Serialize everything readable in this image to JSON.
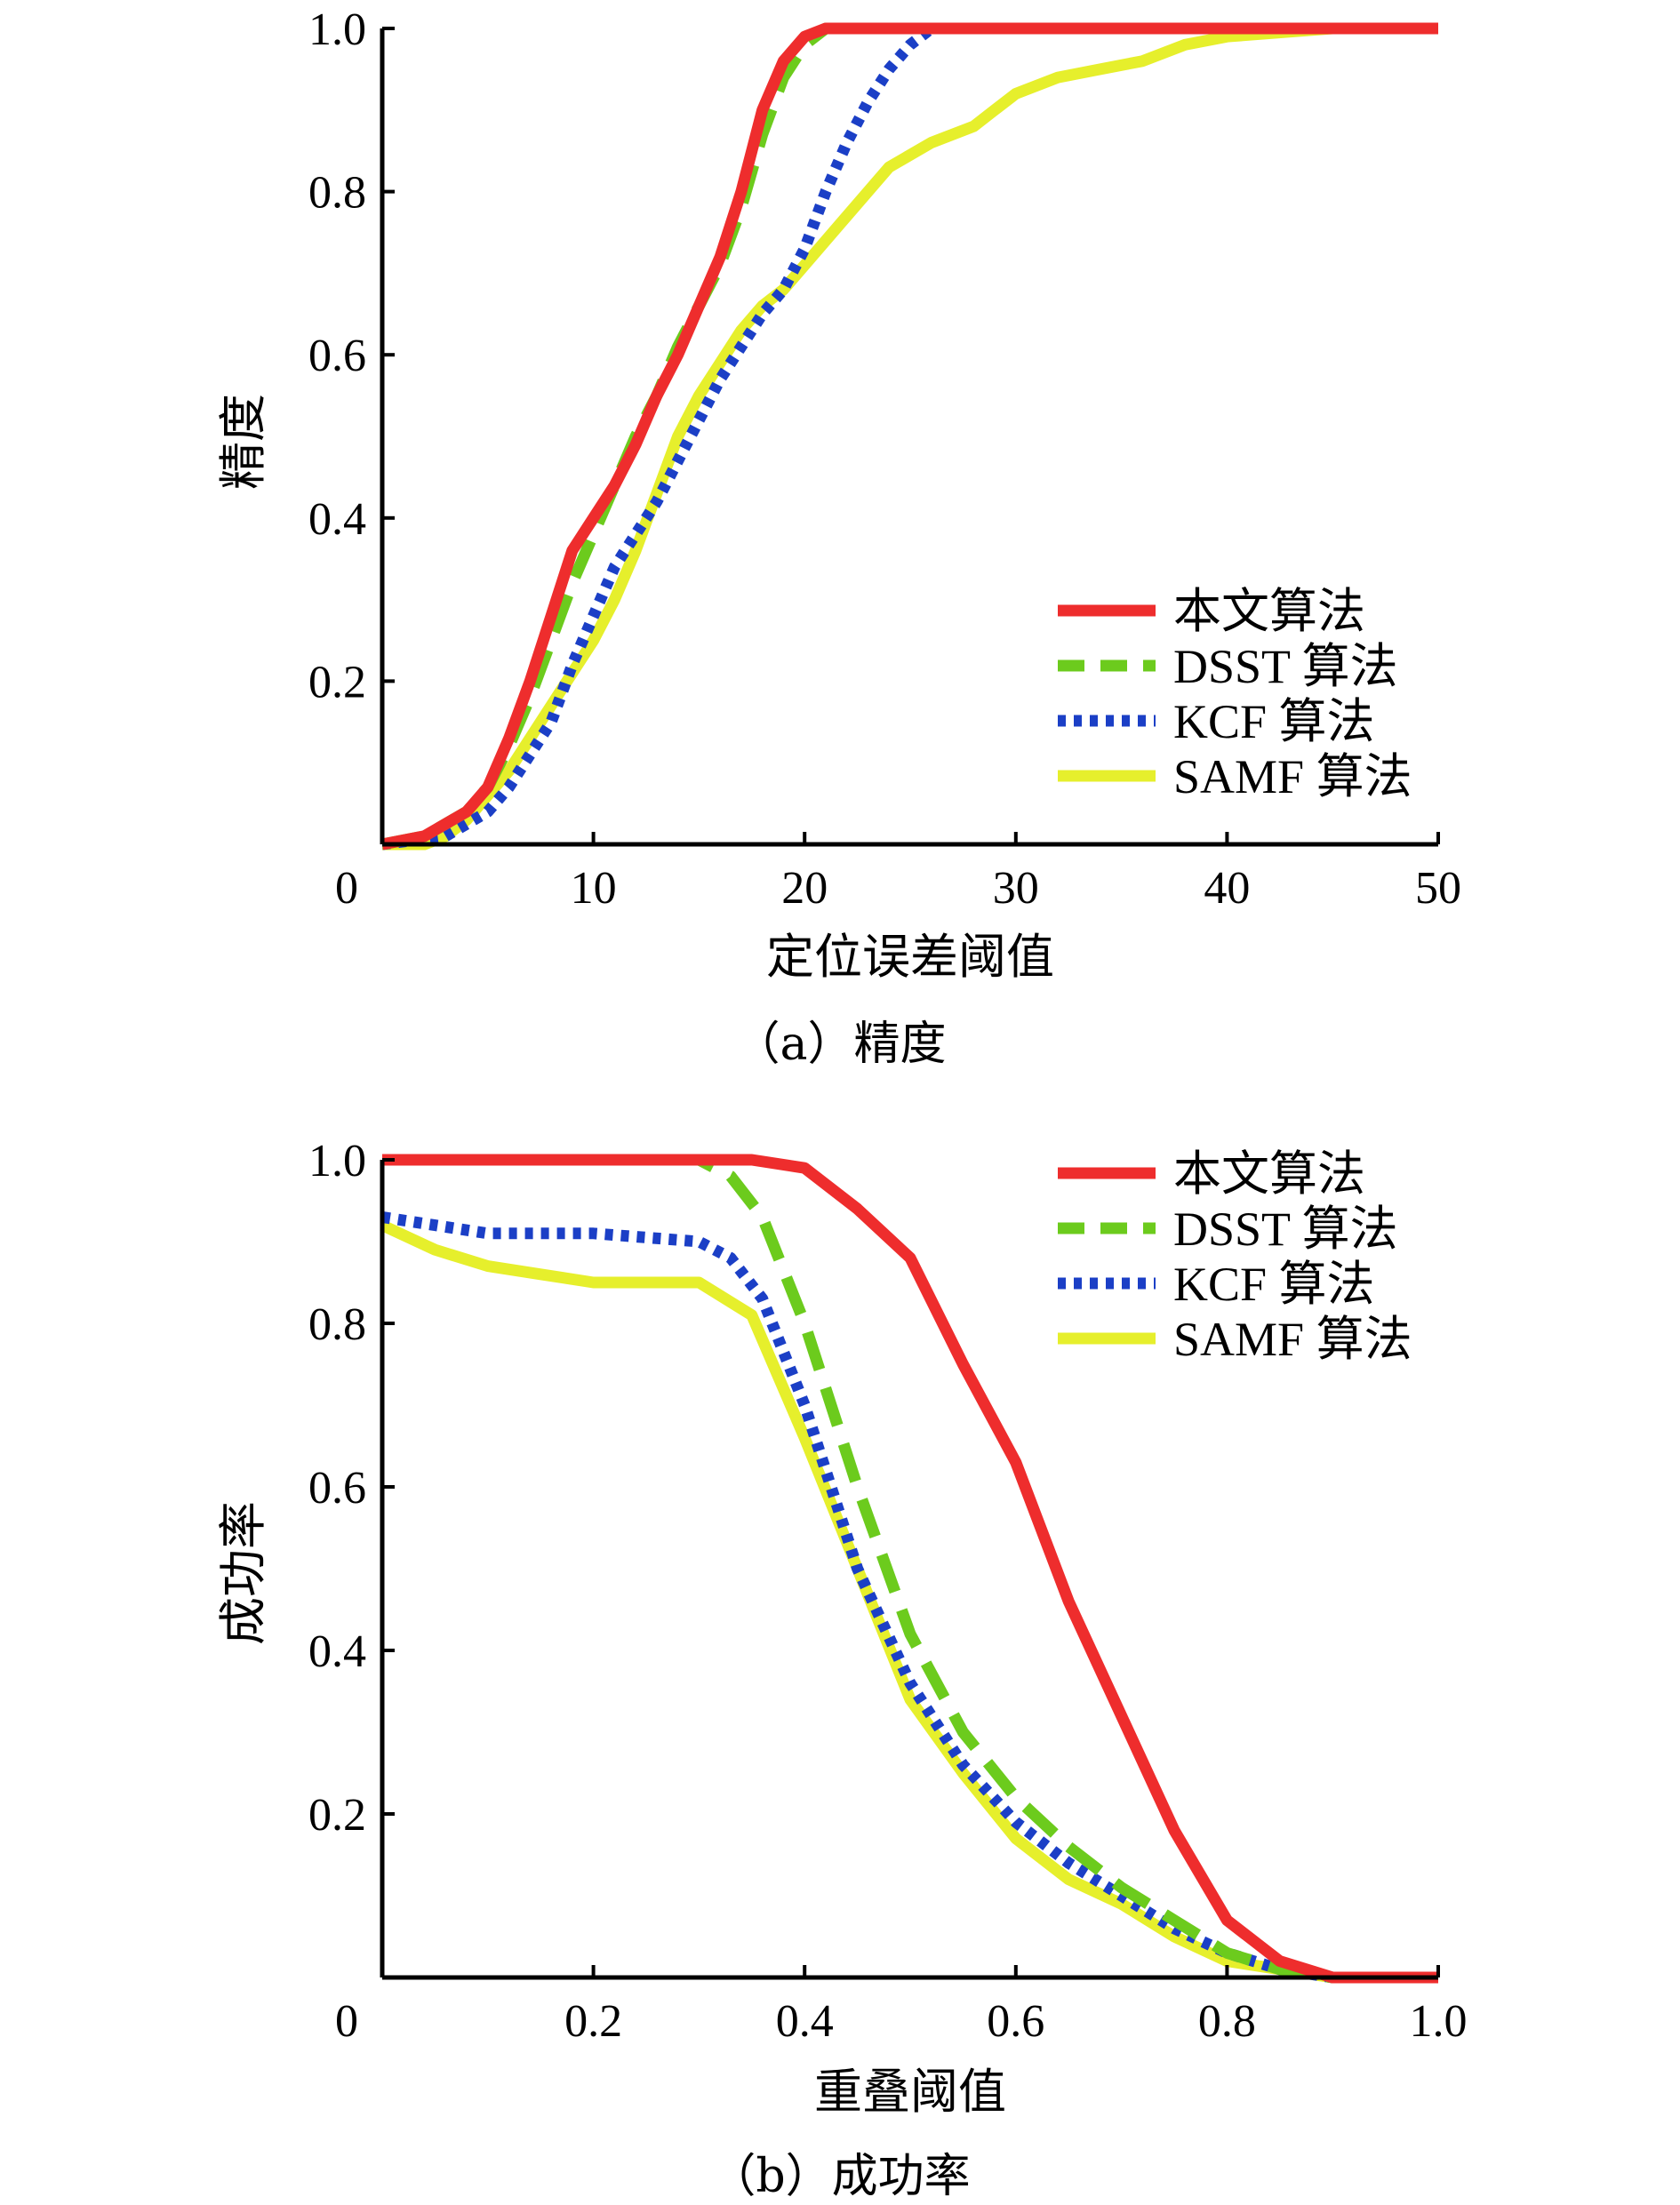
{
  "chart_data": [
    {
      "type": "line",
      "caption": "（a）精度",
      "xlabel": "定位误差阈值",
      "ylabel": "精度",
      "xlim": [
        0,
        50
      ],
      "ylim": [
        0,
        1.0
      ],
      "x_ticks": [
        "0",
        "10",
        "20",
        "30",
        "40",
        "50"
      ],
      "y_ticks": [
        "0.2",
        "0.4",
        "0.6",
        "0.8",
        "1.0"
      ],
      "legend_position": "bottom-right",
      "series": [
        {
          "name": "本文算法",
          "color": "#ee2d2d",
          "style": "solid",
          "x": [
            0,
            2,
            4,
            5,
            6,
            7,
            8,
            9,
            10,
            11,
            12,
            13,
            14,
            15,
            16,
            17,
            18,
            19,
            20,
            21,
            22,
            25,
            30,
            40,
            50
          ],
          "y": [
            0,
            0.01,
            0.04,
            0.07,
            0.13,
            0.2,
            0.28,
            0.36,
            0.4,
            0.44,
            0.49,
            0.55,
            0.6,
            0.66,
            0.72,
            0.8,
            0.9,
            0.96,
            0.99,
            1.0,
            1.0,
            1.0,
            1.0,
            1.0,
            1.0
          ]
        },
        {
          "name": "DSST 算法",
          "color": "#6ccb1d",
          "style": "dashed",
          "x": [
            0,
            2,
            4,
            5,
            6,
            7,
            8,
            9,
            10,
            11,
            12,
            13,
            14,
            15,
            16,
            17,
            18,
            19,
            20,
            21,
            22,
            25,
            30,
            40,
            50
          ],
          "y": [
            0,
            0.01,
            0.04,
            0.07,
            0.12,
            0.18,
            0.25,
            0.32,
            0.38,
            0.44,
            0.5,
            0.55,
            0.61,
            0.66,
            0.71,
            0.78,
            0.87,
            0.94,
            0.98,
            1.0,
            1.0,
            1.0,
            1.0,
            1.0,
            1.0
          ]
        },
        {
          "name": "KCF 算法",
          "color": "#1b3fc6",
          "style": "dotted",
          "x": [
            0,
            3,
            5,
            6,
            7,
            8,
            9,
            10,
            11,
            12,
            13,
            14,
            15,
            16,
            17,
            18,
            19,
            20,
            21,
            22,
            23,
            24,
            25,
            26,
            27,
            30,
            40,
            50
          ],
          "y": [
            0,
            0.01,
            0.04,
            0.07,
            0.11,
            0.15,
            0.22,
            0.28,
            0.34,
            0.38,
            0.42,
            0.47,
            0.52,
            0.57,
            0.61,
            0.65,
            0.68,
            0.73,
            0.8,
            0.86,
            0.91,
            0.95,
            0.98,
            1.0,
            1.0,
            1.0,
            1.0,
            1.0
          ]
        },
        {
          "name": "SAMF 算法",
          "color": "#e6ef2c",
          "style": "solid",
          "x": [
            0,
            2,
            3,
            4,
            5,
            6,
            7,
            8,
            9,
            10,
            11,
            12,
            13,
            14,
            15,
            16,
            17,
            18,
            19,
            20,
            22,
            24,
            26,
            28,
            29,
            30,
            32,
            34,
            36,
            38,
            40,
            45,
            50
          ],
          "y": [
            0,
            0.0,
            0.01,
            0.03,
            0.06,
            0.09,
            0.13,
            0.17,
            0.21,
            0.25,
            0.3,
            0.36,
            0.43,
            0.5,
            0.55,
            0.59,
            0.63,
            0.66,
            0.68,
            0.71,
            0.77,
            0.83,
            0.86,
            0.88,
            0.9,
            0.92,
            0.94,
            0.95,
            0.96,
            0.98,
            0.99,
            1.0,
            1.0
          ]
        }
      ]
    },
    {
      "type": "line",
      "caption": "（b）成功率",
      "xlabel": "重叠阈值",
      "ylabel": "成功率",
      "xlim": [
        0,
        1.0
      ],
      "ylim": [
        0,
        1.0
      ],
      "x_ticks": [
        "0",
        "0.2",
        "0.4",
        "0.6",
        "0.8",
        "1.0"
      ],
      "y_ticks": [
        "0.2",
        "0.4",
        "0.6",
        "0.8",
        "1.0"
      ],
      "legend_position": "top-right",
      "series": [
        {
          "name": "本文算法",
          "color": "#ee2d2d",
          "style": "solid",
          "x": [
            0,
            0.1,
            0.2,
            0.3,
            0.35,
            0.4,
            0.45,
            0.5,
            0.55,
            0.6,
            0.65,
            0.7,
            0.75,
            0.8,
            0.85,
            0.9,
            1.0
          ],
          "y": [
            1.0,
            1.0,
            1.0,
            1.0,
            1.0,
            0.99,
            0.94,
            0.88,
            0.75,
            0.63,
            0.46,
            0.32,
            0.18,
            0.07,
            0.02,
            0.0,
            0.0
          ]
        },
        {
          "name": "DSST 算法",
          "color": "#6ccb1d",
          "style": "dashed",
          "x": [
            0,
            0.1,
            0.2,
            0.3,
            0.33,
            0.36,
            0.4,
            0.45,
            0.5,
            0.55,
            0.6,
            0.65,
            0.7,
            0.75,
            0.8,
            0.85,
            0.9,
            1.0
          ],
          "y": [
            1.0,
            1.0,
            1.0,
            1.0,
            0.98,
            0.93,
            0.8,
            0.6,
            0.42,
            0.3,
            0.22,
            0.16,
            0.11,
            0.07,
            0.03,
            0.01,
            0.0,
            0.0
          ]
        },
        {
          "name": "KCF 算法",
          "color": "#1b3fc6",
          "style": "dotted",
          "x": [
            0,
            0.05,
            0.1,
            0.2,
            0.3,
            0.33,
            0.36,
            0.4,
            0.45,
            0.5,
            0.55,
            0.6,
            0.65,
            0.7,
            0.75,
            0.8,
            0.85,
            0.9,
            1.0
          ],
          "y": [
            0.93,
            0.92,
            0.91,
            0.91,
            0.9,
            0.88,
            0.83,
            0.7,
            0.5,
            0.36,
            0.26,
            0.19,
            0.14,
            0.1,
            0.06,
            0.03,
            0.01,
            0.0,
            0.0
          ]
        },
        {
          "name": "SAMF 算法",
          "color": "#e6ef2c",
          "style": "solid",
          "x": [
            0,
            0.05,
            0.1,
            0.15,
            0.2,
            0.25,
            0.3,
            0.35,
            0.4,
            0.45,
            0.5,
            0.55,
            0.6,
            0.65,
            0.7,
            0.75,
            0.8,
            0.85,
            0.9,
            1.0
          ],
          "y": [
            0.92,
            0.89,
            0.87,
            0.86,
            0.85,
            0.85,
            0.85,
            0.81,
            0.66,
            0.5,
            0.34,
            0.25,
            0.17,
            0.12,
            0.09,
            0.05,
            0.02,
            0.01,
            0.0,
            0.0
          ]
        }
      ]
    }
  ]
}
